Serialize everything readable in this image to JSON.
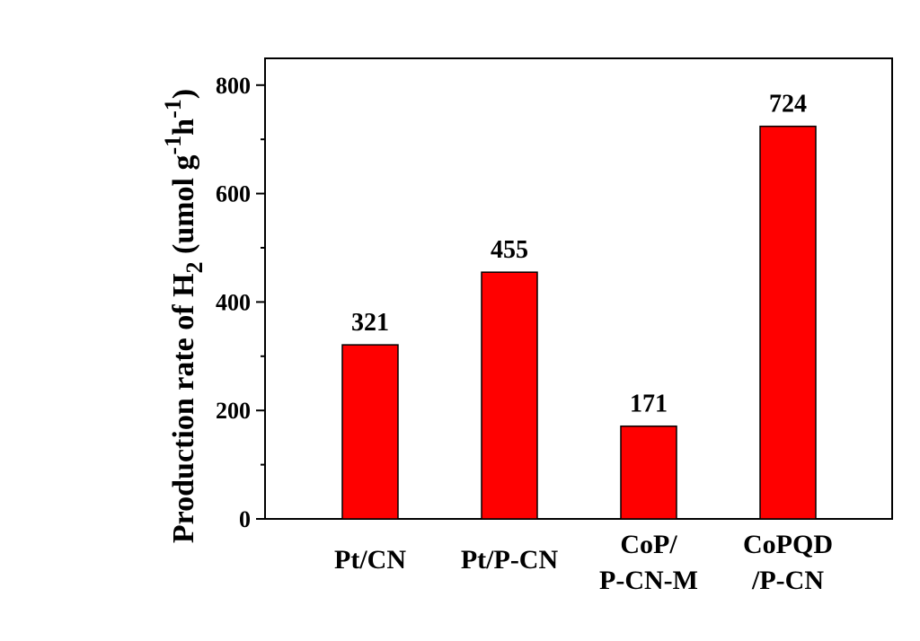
{
  "chart_data": {
    "type": "bar",
    "categories": [
      [
        "Pt/CN"
      ],
      [
        "Pt/P-CN"
      ],
      [
        "CoP/",
        "P-CN-M"
      ],
      [
        "CoPQD",
        "/P-CN"
      ]
    ],
    "values": [
      321,
      455,
      171,
      724
    ],
    "data_labels": [
      "321",
      "455",
      "171",
      "724"
    ],
    "title": "",
    "xlabel": "",
    "ylabel": {
      "main": "Production rate of H",
      "sub": "2",
      "unit_open": " (umol g",
      "sup1": "-1",
      "mid": "h",
      "sup2": "-1",
      "close": ")"
    },
    "ylim": [
      0,
      850
    ],
    "yticks": [
      "0",
      "200",
      "400",
      "600",
      "800"
    ],
    "ytick_values": [
      0,
      200,
      400,
      600,
      800
    ],
    "yminor_step": 100,
    "grid": false,
    "legend": "none",
    "bar_color": "#ff0000",
    "edge_color": "#000000"
  }
}
